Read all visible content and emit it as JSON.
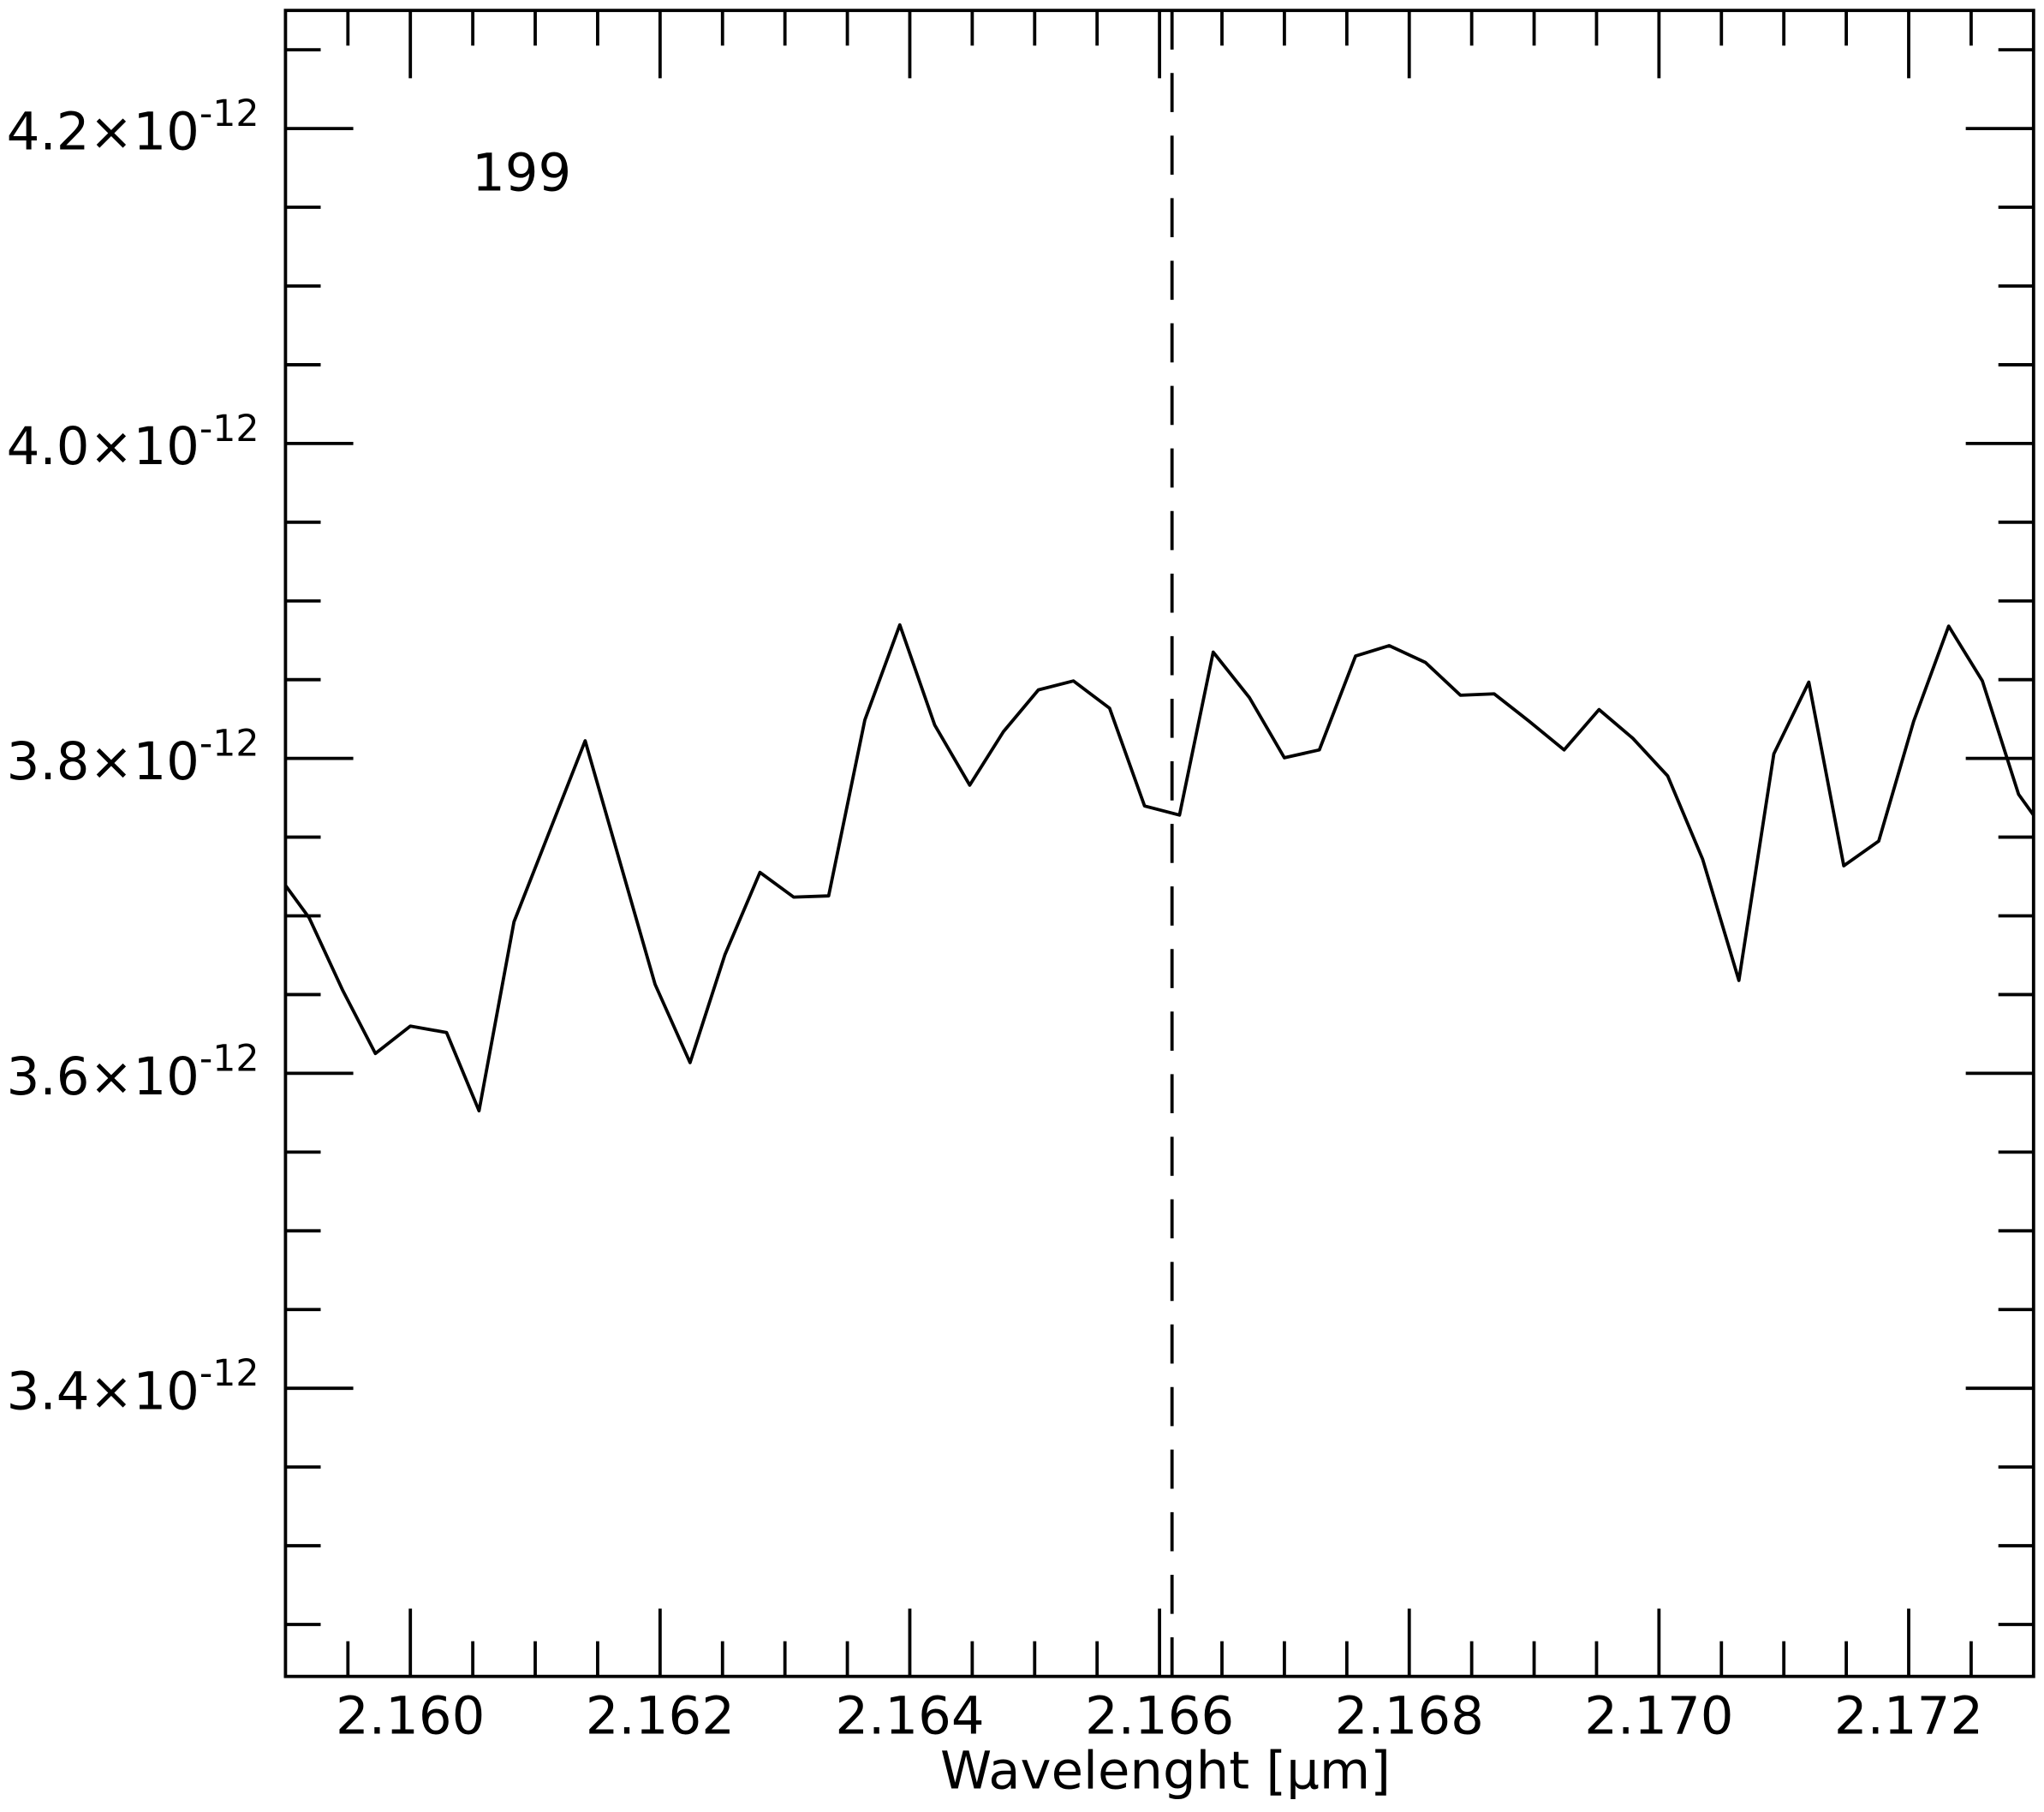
{
  "chart_data": {
    "type": "line",
    "annotation": "199",
    "annotation_color": "#0000ff",
    "xlabel": "Wavelenght [μm]",
    "xlim": [
      2.159,
      2.173
    ],
    "ylim": [
      3.217e-12,
      4.275e-12
    ],
    "xticks": [
      {
        "value": 2.16,
        "label": "2.160"
      },
      {
        "value": 2.162,
        "label": "2.162"
      },
      {
        "value": 2.164,
        "label": "2.164"
      },
      {
        "value": 2.166,
        "label": "2.166"
      },
      {
        "value": 2.168,
        "label": "2.168"
      },
      {
        "value": 2.17,
        "label": "2.170"
      },
      {
        "value": 2.172,
        "label": "2.172"
      }
    ],
    "xminorticks": [
      2.1595,
      2.1605,
      2.161,
      2.1615,
      2.1625,
      2.163,
      2.1635,
      2.1645,
      2.165,
      2.1655,
      2.1665,
      2.167,
      2.1675,
      2.1685,
      2.169,
      2.1695,
      2.1705,
      2.171,
      2.1715,
      2.1725
    ],
    "yticks": [
      {
        "value": 3.4e-12,
        "label": "3.4×10",
        "exponent": "-12"
      },
      {
        "value": 3.6e-12,
        "label": "3.6×10",
        "exponent": "-12"
      },
      {
        "value": 3.8e-12,
        "label": "3.8×10",
        "exponent": "-12"
      },
      {
        "value": 4e-12,
        "label": "4.0×10",
        "exponent": "-12"
      },
      {
        "value": 4.2e-12,
        "label": "4.2×10",
        "exponent": "-12"
      }
    ],
    "yminorticks": [
      3.25e-12,
      3.3e-12,
      3.35e-12,
      3.45e-12,
      3.5e-12,
      3.55e-12,
      3.65e-12,
      3.7e-12,
      3.75e-12,
      3.85e-12,
      3.9e-12,
      3.95e-12,
      4.05e-12,
      4.1e-12,
      4.15e-12,
      4.25e-12
    ],
    "vline": 2.1661,
    "color": "#000000",
    "x": [
      2.159,
      2.15919,
      2.15946,
      2.15972,
      2.16,
      2.16029,
      2.16055,
      2.16083,
      2.1614,
      2.16196,
      2.16224,
      2.16252,
      2.1628,
      2.16307,
      2.16335,
      2.16364,
      2.16392,
      2.1642,
      2.16448,
      2.16475,
      2.16503,
      2.16531,
      2.1656,
      2.16588,
      2.16616,
      2.16643,
      2.16672,
      2.167,
      2.16728,
      2.16757,
      2.16784,
      2.16813,
      2.16841,
      2.16868,
      2.16896,
      2.16924,
      2.16952,
      2.16979,
      2.17007,
      2.17035,
      2.17064,
      2.17092,
      2.1712,
      2.17148,
      2.17176,
      2.17204,
      2.17232,
      2.17259,
      2.17288,
      2.173
    ],
    "values": [
      3.7193e-12,
      3.6987e-12,
      3.6524e-12,
      3.6126e-12,
      3.63e-12,
      3.6259e-12,
      3.5762e-12,
      3.6962e-12,
      3.8112e-12,
      3.6565e-12,
      3.6068e-12,
      3.6755e-12,
      3.7276e-12,
      3.7119e-12,
      3.7127e-12,
      3.8244e-12,
      3.8848e-12,
      3.8211e-12,
      3.783e-12,
      3.817e-12,
      3.8435e-12,
      3.8492e-12,
      3.8319e-12,
      3.7698e-12,
      3.764e-12,
      3.8675e-12,
      3.8386e-12,
      3.8004e-12,
      3.8054e-12,
      3.865e-12,
      3.8716e-12,
      3.8609e-12,
      3.8401e-12,
      3.841e-12,
      3.8236e-12,
      3.8054e-12,
      3.831e-12,
      3.8128e-12,
      3.7888e-12,
      3.7359e-12,
      3.659e-12,
      3.8029e-12,
      3.8484e-12,
      3.7318e-12,
      3.7475e-12,
      3.8236e-12,
      3.884e-12,
      3.8492e-12,
      3.7772e-12,
      3.764e-12
    ]
  }
}
